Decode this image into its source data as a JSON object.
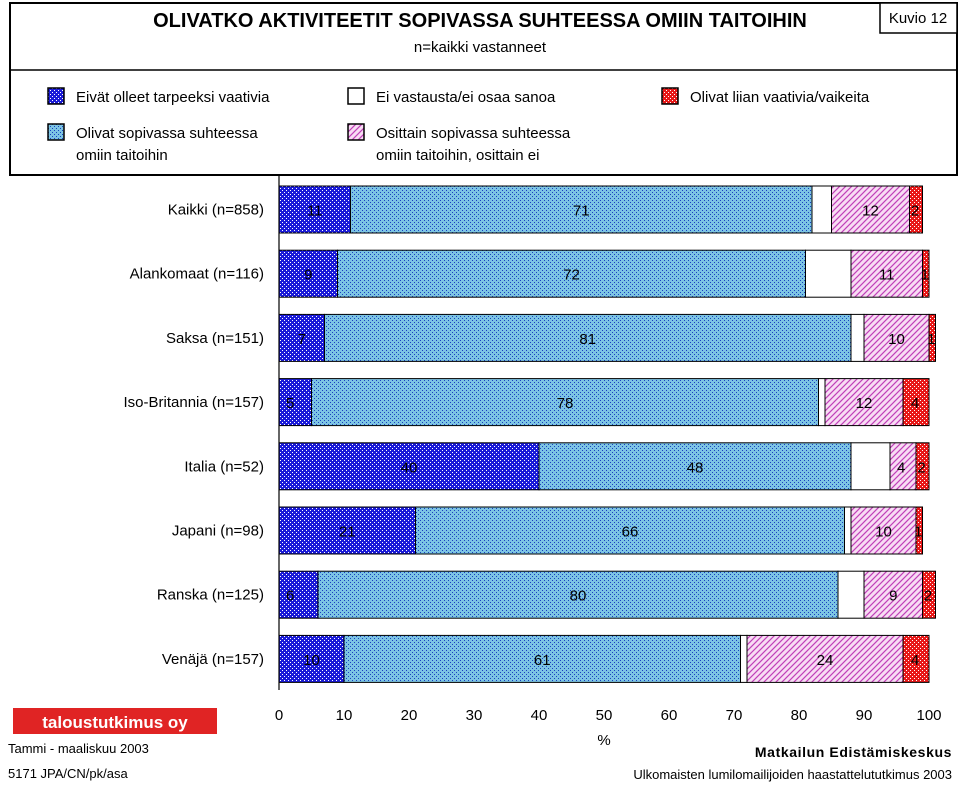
{
  "header": {
    "title": "OLIVATKO AKTIVITEETIT SOPIVASSA SUHTEESSA OMIIN TAITOIHIN",
    "subtitle": "n=kaikki vastanneet",
    "figure_label": "Kuvio 12"
  },
  "legend": [
    {
      "lines": [
        "Eivät olleet tarpeeksi vaativia"
      ],
      "series": "s1"
    },
    {
      "lines": [
        "Ei vastausta/ei osaa sanoa"
      ],
      "series": "s3"
    },
    {
      "lines": [
        "Olivat liian vaativia/vaikeita"
      ],
      "series": "s5"
    },
    {
      "lines": [
        "Olivat sopivassa suhteessa",
        "omiin taitoihin"
      ],
      "series": "s2"
    },
    {
      "lines": [
        "Osittain sopivassa suhteessa",
        "omiin taitoihin, osittain ei"
      ],
      "series": "s4"
    }
  ],
  "chart_data": {
    "type": "bar",
    "orientation": "horizontal",
    "stacked": true,
    "categories": [
      "Kaikki (n=858)",
      "Alankomaat (n=116)",
      "Saksa (n=151)",
      "Iso-Britannia (n=157)",
      "Italia (n=52)",
      "Japani (n=98)",
      "Ranska (n=125)",
      "Venäjä (n=157)"
    ],
    "series": [
      {
        "id": "s1",
        "name": "Eivät olleet tarpeeksi vaativia",
        "color": "#2020e0",
        "values": [
          11,
          9,
          7,
          5,
          40,
          21,
          6,
          10
        ],
        "labeled": true
      },
      {
        "id": "s2",
        "name": "Olivat sopivassa suhteessa omiin taitoihin",
        "color": "#80c8e8",
        "values": [
          71,
          72,
          81,
          78,
          48,
          66,
          80,
          61
        ],
        "labeled": true
      },
      {
        "id": "s3",
        "name": "Ei vastausta/ei osaa sanoa",
        "color": "#ffffff",
        "values": [
          3,
          7,
          2,
          1,
          6,
          1,
          4,
          1
        ],
        "labeled": false
      },
      {
        "id": "s4",
        "name": "Osittain sopivassa suhteessa omiin taitoihin, osittain ei",
        "color": "#f0a8e8",
        "values": [
          12,
          11,
          10,
          12,
          4,
          10,
          9,
          24
        ],
        "labeled": true
      },
      {
        "id": "s5",
        "name": "Olivat liian vaativia/vaikeita",
        "color": "#e01818",
        "values": [
          2,
          1,
          1,
          4,
          2,
          1,
          2,
          4
        ],
        "labeled": true
      }
    ],
    "xlim": [
      0,
      100
    ],
    "xticks": [
      "0",
      "10",
      "20",
      "30",
      "40",
      "50",
      "60",
      "70",
      "80",
      "90",
      "100"
    ],
    "xlabel": "%",
    "ylabel": ""
  },
  "footer": {
    "logo_text": "taloustutkimus oy",
    "period": "Tammi - maaliskuu 2003",
    "code": "5171 JPA/CN/pk/asa",
    "org": "Matkailun Edistämiskeskus",
    "study": "Ulkomaisten lumilomailijoiden haastattelututkimus 2003"
  }
}
